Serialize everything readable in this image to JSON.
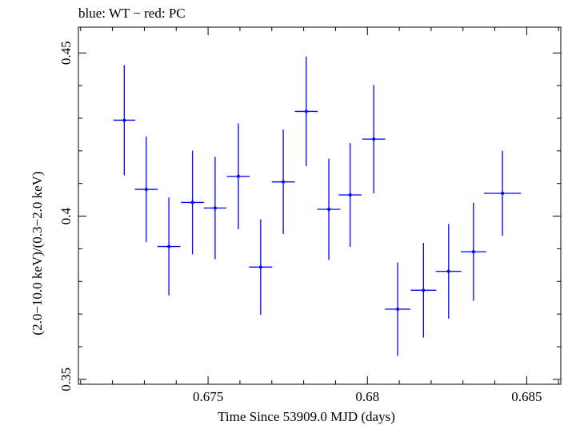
{
  "chart_data": {
    "type": "scatter",
    "title": "blue: WT − red: PC",
    "xlabel": "Time Since 53909.0 MJD (days)",
    "ylabel": "(2.0−10.0 keV)/(0.3−2.0 keV)",
    "xlim": [
      0.67093,
      0.68607
    ],
    "ylim": [
      0.3485,
      0.4579
    ],
    "x_ticks": [
      0.675,
      0.68,
      0.685
    ],
    "x_tick_labels": [
      "0.675",
      "0.68",
      "0.685"
    ],
    "y_ticks": [
      0.35,
      0.4,
      0.45
    ],
    "y_tick_labels": [
      "0.35",
      "0.4",
      "0.45"
    ],
    "series": [
      {
        "name": "WT",
        "color": "#0000ff",
        "points": [
          {
            "x": 0.67237,
            "y": 0.4294,
            "xerr": 0.00034,
            "yerr": 0.0169
          },
          {
            "x": 0.67306,
            "y": 0.4082,
            "xerr": 0.00036,
            "yerr": 0.0162
          },
          {
            "x": 0.67377,
            "y": 0.3907,
            "xerr": 0.00036,
            "yerr": 0.015
          },
          {
            "x": 0.67451,
            "y": 0.4042,
            "xerr": 0.00036,
            "yerr": 0.0159
          },
          {
            "x": 0.67522,
            "y": 0.4025,
            "xerr": 0.00035,
            "yerr": 0.0157
          },
          {
            "x": 0.67595,
            "y": 0.4122,
            "xerr": 0.00036,
            "yerr": 0.0162
          },
          {
            "x": 0.67665,
            "y": 0.3844,
            "xerr": 0.00036,
            "yerr": 0.0146
          },
          {
            "x": 0.67736,
            "y": 0.4105,
            "xerr": 0.00036,
            "yerr": 0.016
          },
          {
            "x": 0.67808,
            "y": 0.4321,
            "xerr": 0.00036,
            "yerr": 0.0168
          },
          {
            "x": 0.67879,
            "y": 0.4021,
            "xerr": 0.00036,
            "yerr": 0.0155
          },
          {
            "x": 0.67946,
            "y": 0.4065,
            "xerr": 0.00036,
            "yerr": 0.0159
          },
          {
            "x": 0.6802,
            "y": 0.4236,
            "xerr": 0.00036,
            "yerr": 0.0166
          },
          {
            "x": 0.68095,
            "y": 0.3715,
            "xerr": 0.0004,
            "yerr": 0.0143
          },
          {
            "x": 0.68176,
            "y": 0.3773,
            "xerr": 0.0004,
            "yerr": 0.0145
          },
          {
            "x": 0.68255,
            "y": 0.3831,
            "xerr": 0.0004,
            "yerr": 0.0145
          },
          {
            "x": 0.68333,
            "y": 0.3891,
            "xerr": 0.0004,
            "yerr": 0.015
          },
          {
            "x": 0.68424,
            "y": 0.407,
            "xerr": 0.00058,
            "yerr": 0.013
          }
        ]
      }
    ]
  }
}
